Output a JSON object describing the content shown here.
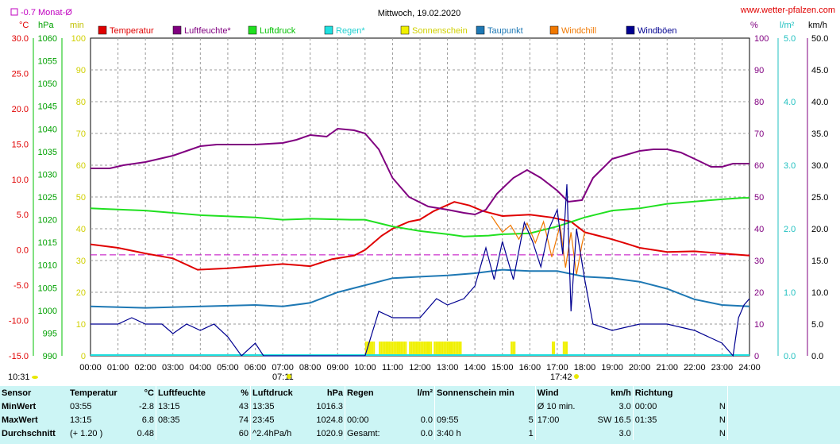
{
  "header": {
    "title": "Mittwoch, 19.02.2020",
    "site": "www.wetter-pfalzen.com",
    "month_avg_label": "-0.7 Monat-Ø",
    "unit_left": [
      "°C",
      "hPa",
      "min"
    ],
    "unit_right": [
      "%",
      "l/m²",
      "km/h"
    ]
  },
  "colors": {
    "temperature": "#e00000",
    "humidity": "#800080",
    "pressure": "#20e020",
    "rain": "#20e0e0",
    "sunshine": "#f0f000",
    "dewpoint": "#1e78b4",
    "windchill": "#f07800",
    "gusts": "#000090",
    "month_avg": "#c000c0"
  },
  "legend": [
    {
      "key": "temperature",
      "label": "Temperatur"
    },
    {
      "key": "humidity",
      "label": "Luftfeuchte*"
    },
    {
      "key": "pressure",
      "label": "Luftdruck"
    },
    {
      "key": "rain",
      "label": "Regen*"
    },
    {
      "key": "sunshine",
      "label": "Sonnenschein"
    },
    {
      "key": "dewpoint",
      "label": "Taupunkt"
    },
    {
      "key": "windchill",
      "label": "Windchill"
    },
    {
      "key": "gusts",
      "label": "Windböen"
    }
  ],
  "markers": {
    "sunrise": "07:11",
    "sunset": "17:42",
    "current_time": "10:31"
  },
  "chart_data": {
    "type": "line",
    "x_ticks": [
      "00:00",
      "01:00",
      "02:00",
      "03:00",
      "04:00",
      "05:00",
      "06:00",
      "07:00",
      "08:00",
      "09:00",
      "10:00",
      "11:00",
      "12:00",
      "13:00",
      "14:00",
      "15:00",
      "16:00",
      "17:00",
      "18:00",
      "19:00",
      "20:00",
      "21:00",
      "22:00",
      "23:00",
      "24:00"
    ],
    "axes": {
      "temperature": {
        "ticks": [
          "30.0",
          "25.0",
          "20.0",
          "15.0",
          "10.0",
          "5.0",
          "0.0",
          "-5.0",
          "-10.0",
          "-15.0"
        ],
        "range": [
          -15,
          30
        ]
      },
      "pressure": {
        "ticks": [
          "1060",
          "1055",
          "1050",
          "1045",
          "1040",
          "1035",
          "1030",
          "1025",
          "1020",
          "1015",
          "1010",
          "1005",
          "1000",
          "995",
          "990"
        ],
        "range": [
          990,
          1060
        ]
      },
      "sunshine_min": {
        "ticks": [
          "100",
          "90",
          "80",
          "70",
          "60",
          "50",
          "40",
          "30",
          "20",
          "10",
          "0"
        ],
        "range": [
          0,
          100
        ]
      },
      "humidity": {
        "ticks": [
          "100",
          "90",
          "80",
          "70",
          "60",
          "50",
          "40",
          "30",
          "20",
          "10",
          "0"
        ],
        "range": [
          0,
          100
        ]
      },
      "rain": {
        "ticks": [
          "5.0",
          "4.0",
          "3.0",
          "2.0",
          "1.0",
          "0.0"
        ],
        "range": [
          0,
          5
        ]
      },
      "wind": {
        "ticks": [
          "50.0",
          "45.0",
          "40.0",
          "35.0",
          "30.0",
          "25.0",
          "20.0",
          "15.0",
          "10.0",
          "5.0",
          "0.0"
        ],
        "range": [
          0,
          50
        ]
      }
    },
    "month_avg_temperature": -0.7,
    "series": [
      {
        "name": "Temperatur",
        "axis": "temperature",
        "color": "#e00000",
        "points": [
          [
            0,
            0.8
          ],
          [
            1,
            0.3
          ],
          [
            2,
            -0.5
          ],
          [
            3,
            -1.2
          ],
          [
            3.9,
            -2.8
          ],
          [
            5,
            -2.6
          ],
          [
            6,
            -2.3
          ],
          [
            7,
            -2.0
          ],
          [
            8,
            -2.3
          ],
          [
            8.8,
            -1.3
          ],
          [
            9.6,
            -0.8
          ],
          [
            10,
            0.0
          ],
          [
            10.6,
            2.0
          ],
          [
            11,
            3.0
          ],
          [
            11.6,
            4.0
          ],
          [
            12,
            4.3
          ],
          [
            12.5,
            5.5
          ],
          [
            13.25,
            6.8
          ],
          [
            13.8,
            6.3
          ],
          [
            14.3,
            5.5
          ],
          [
            15,
            4.8
          ],
          [
            16,
            5.0
          ],
          [
            16.8,
            4.6
          ],
          [
            17.5,
            4.0
          ],
          [
            18,
            2.5
          ],
          [
            19,
            1.5
          ],
          [
            19.6,
            0.8
          ],
          [
            20,
            0.3
          ],
          [
            21,
            -0.3
          ],
          [
            22,
            -0.2
          ],
          [
            23,
            -0.5
          ],
          [
            24,
            -0.8
          ]
        ]
      },
      {
        "name": "Luftfeuchte*",
        "axis": "humidity",
        "color": "#800080",
        "points": [
          [
            0,
            59
          ],
          [
            0.7,
            59
          ],
          [
            1.2,
            60
          ],
          [
            2,
            61
          ],
          [
            3,
            63
          ],
          [
            4,
            66
          ],
          [
            4.6,
            66.5
          ],
          [
            5,
            66.5
          ],
          [
            6,
            66.5
          ],
          [
            7,
            67
          ],
          [
            7.5,
            68
          ],
          [
            8,
            69.5
          ],
          [
            8.6,
            69
          ],
          [
            9,
            71.5
          ],
          [
            9.6,
            71
          ],
          [
            10,
            70
          ],
          [
            10.5,
            65
          ],
          [
            11,
            56
          ],
          [
            11.6,
            50
          ],
          [
            12.3,
            47
          ],
          [
            13,
            46
          ],
          [
            13.6,
            45
          ],
          [
            14,
            44.5
          ],
          [
            14.4,
            46
          ],
          [
            14.8,
            51
          ],
          [
            15.4,
            56
          ],
          [
            15.9,
            58.5
          ],
          [
            16.4,
            56
          ],
          [
            17,
            52
          ],
          [
            17.4,
            48.5
          ],
          [
            17.9,
            49
          ],
          [
            18.3,
            56
          ],
          [
            19,
            62
          ],
          [
            20,
            64.5
          ],
          [
            20.5,
            65
          ],
          [
            21,
            65
          ],
          [
            21.5,
            64
          ],
          [
            22,
            62
          ],
          [
            22.6,
            59.5
          ],
          [
            23,
            59.5
          ],
          [
            23.4,
            60.5
          ],
          [
            24,
            60.5
          ]
        ]
      },
      {
        "name": "Luftdruck",
        "axis": "pressure",
        "color": "#20e020",
        "points": [
          [
            0,
            1022.5
          ],
          [
            2,
            1022
          ],
          [
            4,
            1021
          ],
          [
            6,
            1020.5
          ],
          [
            7,
            1020
          ],
          [
            8,
            1020.2
          ],
          [
            9.5,
            1020
          ],
          [
            10,
            1020
          ],
          [
            11,
            1018.5
          ],
          [
            12,
            1017.5
          ],
          [
            13,
            1016.8
          ],
          [
            13.6,
            1016.3
          ],
          [
            14.5,
            1016.5
          ],
          [
            15,
            1016.8
          ],
          [
            16,
            1017
          ],
          [
            17,
            1018.5
          ],
          [
            18,
            1020.5
          ],
          [
            19,
            1022
          ],
          [
            20,
            1022.5
          ],
          [
            21,
            1023.5
          ],
          [
            22,
            1024
          ],
          [
            23,
            1024.5
          ],
          [
            23.75,
            1024.8
          ],
          [
            24,
            1024.8
          ]
        ]
      },
      {
        "name": "Windchill",
        "axis": "temperature",
        "color": "#f07800",
        "points": [
          [
            14.6,
            4.8
          ],
          [
            15,
            2.5
          ],
          [
            15.3,
            3.5
          ],
          [
            15.6,
            1.5
          ],
          [
            15.9,
            3.8
          ],
          [
            16.2,
            1.0
          ],
          [
            16.5,
            4.0
          ],
          [
            16.8,
            -1.0
          ],
          [
            17.1,
            3.5
          ],
          [
            17.3,
            -2.5
          ],
          [
            17.5,
            2.5
          ],
          [
            17.7,
            -3.5
          ],
          [
            17.9,
            0.8
          ],
          [
            18,
            2.5
          ]
        ]
      },
      {
        "name": "Taupunkt",
        "axis": "temperature",
        "color": "#1e78b4",
        "points": [
          [
            0,
            -8.0
          ],
          [
            2,
            -8.2
          ],
          [
            4,
            -8.0
          ],
          [
            6,
            -7.8
          ],
          [
            7,
            -8.0
          ],
          [
            8,
            -7.5
          ],
          [
            9,
            -6.0
          ],
          [
            10,
            -5.0
          ],
          [
            11,
            -4.0
          ],
          [
            12,
            -3.8
          ],
          [
            13,
            -3.6
          ],
          [
            14,
            -3.3
          ],
          [
            15,
            -2.8
          ],
          [
            16,
            -3.0
          ],
          [
            17,
            -3.0
          ],
          [
            18,
            -3.8
          ],
          [
            19,
            -4.0
          ],
          [
            20,
            -4.5
          ],
          [
            21,
            -5.5
          ],
          [
            22,
            -7.0
          ],
          [
            23,
            -7.8
          ],
          [
            24,
            -8.0
          ]
        ]
      },
      {
        "name": "Windböen",
        "axis": "wind",
        "color": "#000090",
        "points": [
          [
            0,
            5
          ],
          [
            0.4,
            5
          ],
          [
            1,
            5
          ],
          [
            1.5,
            6
          ],
          [
            2,
            5
          ],
          [
            2.6,
            5
          ],
          [
            3,
            3.5
          ],
          [
            3.5,
            5
          ],
          [
            4,
            4
          ],
          [
            4.5,
            5
          ],
          [
            5,
            3
          ],
          [
            5.5,
            0
          ],
          [
            6,
            2
          ],
          [
            6.3,
            0
          ],
          [
            10,
            0
          ],
          [
            10.5,
            7
          ],
          [
            11,
            6
          ],
          [
            12,
            6
          ],
          [
            12.6,
            9
          ],
          [
            13,
            8
          ],
          [
            13.6,
            9
          ],
          [
            14,
            11
          ],
          [
            14.4,
            17
          ],
          [
            14.7,
            12
          ],
          [
            15,
            18
          ],
          [
            15.4,
            12
          ],
          [
            15.8,
            21
          ],
          [
            16.1,
            18
          ],
          [
            16.4,
            14
          ],
          [
            16.7,
            20
          ],
          [
            17,
            23
          ],
          [
            17.2,
            16
          ],
          [
            17.35,
            27
          ],
          [
            17.5,
            7
          ],
          [
            17.7,
            20
          ],
          [
            18,
            12
          ],
          [
            18.3,
            5
          ],
          [
            19,
            4
          ],
          [
            20,
            5
          ],
          [
            21,
            5
          ],
          [
            22,
            4
          ],
          [
            22.5,
            3
          ],
          [
            23,
            2
          ],
          [
            23.4,
            0
          ],
          [
            23.6,
            6
          ],
          [
            23.8,
            8
          ],
          [
            24,
            9
          ]
        ]
      }
    ],
    "sunshine_intervals": [
      [
        10.0,
        10.35
      ],
      [
        10.5,
        11.5
      ],
      [
        11.6,
        12.4
      ],
      [
        12.5,
        13.5
      ],
      [
        15.3,
        15.45
      ],
      [
        16.8,
        16.9
      ],
      [
        17.2,
        17.35
      ]
    ]
  },
  "stats": {
    "header": [
      "Sensor",
      "Temperatur",
      "°C",
      "Luftfeuchte",
      "%",
      "Luftdruck",
      "hPa",
      "Regen",
      "l/m²",
      "Sonnenschein min",
      "",
      "Wind",
      "km/h",
      "Richtung",
      ""
    ],
    "rows": [
      [
        "MinWert",
        "03:55",
        "-2.8",
        "13:15",
        "43",
        "13:35",
        "1016.3",
        "",
        "",
        "",
        "",
        "Ø 10 min.",
        "3.0",
        "00:00",
        "N"
      ],
      [
        "MaxWert",
        "13:15",
        "6.8",
        "08:35",
        "74",
        "23:45",
        "1024.8",
        "00:00",
        "0.0",
        "09:55",
        "5",
        "17:00",
        "SW 16.5",
        "01:35",
        "N"
      ],
      [
        "Durchschnitt",
        "(+ 1.20 )",
        "0.48",
        "",
        "60",
        "^2.4hPa/h",
        "1020.9",
        "Gesamt:",
        "0.0",
        "3:40 h",
        "1",
        "",
        "3.0",
        "",
        "N"
      ]
    ]
  }
}
